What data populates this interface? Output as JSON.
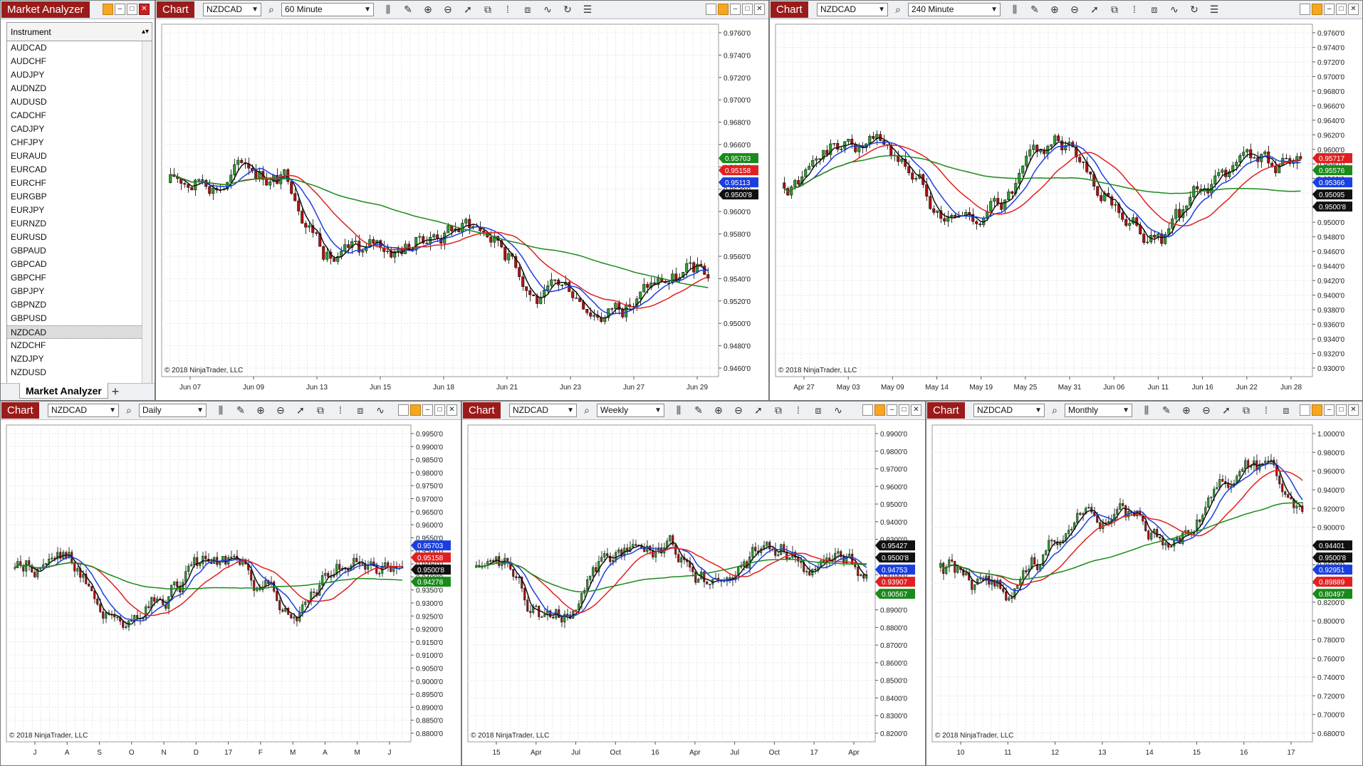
{
  "market_analyzer": {
    "title": "Market Analyzer",
    "column_header": "Instrument",
    "instruments": [
      "AUDCAD",
      "AUDCHF",
      "AUDJPY",
      "AUDNZD",
      "AUDUSD",
      "CADCHF",
      "CADJPY",
      "CHFJPY",
      "EURAUD",
      "EURCAD",
      "EURCHF",
      "EURGBP",
      "EURJPY",
      "EURNZD",
      "EURUSD",
      "GBPAUD",
      "GBPCAD",
      "GBPCHF",
      "GBPJPY",
      "GBPNZD",
      "GBPUSD",
      "NZDCAD",
      "NZDCHF",
      "NZDJPY",
      "NZDUSD"
    ],
    "selected": "NZDCAD",
    "tab_label": "Market Analyzer",
    "add_tab": "+"
  },
  "charts": [
    {
      "title": "Chart",
      "instrument": "NZDCAD",
      "interval": "60 Minute",
      "copyright": "© 2018 NinjaTrader, LLC",
      "price_labels": [
        "0.9760'0",
        "0.9740'0",
        "0.9720'0",
        "0.9700'0",
        "0.9680'0",
        "0.9660'0",
        "0.9640'0",
        "0.9620'0",
        "0.9600'0",
        "0.9580'0",
        "0.9560'0",
        "0.9540'0",
        "0.9520'0",
        "0.9500'0",
        "0.9480'0",
        "0.9460'0"
      ],
      "date_labels": [
        "Jun 07",
        "Jun 09",
        "Jun 13",
        "Jun 15",
        "Jun 18",
        "Jun 21",
        "Jun 23",
        "Jun 27",
        "Jun 29"
      ],
      "badges": [
        {
          "text": "0.95703",
          "color": "#1a8a1a"
        },
        {
          "text": "0.95158",
          "color": "#e02020"
        },
        {
          "text": "0.95113",
          "color": "#1a3fe0"
        },
        {
          "text": "0.9500'8",
          "color": "#111111"
        }
      ]
    },
    {
      "title": "Chart",
      "instrument": "NZDCAD",
      "interval": "240 Minute",
      "copyright": "© 2018 NinjaTrader, LLC",
      "price_labels": [
        "0.9760'0",
        "0.9740'0",
        "0.9720'0",
        "0.9700'0",
        "0.9680'0",
        "0.9660'0",
        "0.9640'0",
        "0.9620'0",
        "0.9600'0",
        "0.9580'0",
        "0.9560'0",
        "0.9540'0",
        "0.9520'0",
        "0.9500'0",
        "0.9480'0",
        "0.9460'0",
        "0.9440'0",
        "0.9420'0",
        "0.9400'0",
        "0.9380'0",
        "0.9360'0",
        "0.9340'0",
        "0.9320'0",
        "0.9300'0"
      ],
      "date_labels": [
        "Apr 27",
        "May 03",
        "May 09",
        "May 14",
        "May 19",
        "May 25",
        "May 31",
        "Jun 06",
        "Jun 11",
        "Jun 16",
        "Jun 22",
        "Jun 28"
      ],
      "badges": [
        {
          "text": "0.95717",
          "color": "#e02020"
        },
        {
          "text": "0.95576",
          "color": "#1a8a1a"
        },
        {
          "text": "0.95366",
          "color": "#1a3fe0"
        },
        {
          "text": "0.95095",
          "color": "#111111"
        },
        {
          "text": "0.9500'8",
          "color": "#111111"
        }
      ]
    },
    {
      "title": "Chart",
      "instrument": "NZDCAD",
      "interval": "Daily",
      "copyright": "© 2018 NinjaTrader, LLC",
      "price_labels": [
        "0.9950'0",
        "0.9900'0",
        "0.9850'0",
        "0.9800'0",
        "0.9750'0",
        "0.9700'0",
        "0.9650'0",
        "0.9600'0",
        "0.9550'0",
        "0.9500'0",
        "0.9450'0",
        "0.9400'0",
        "0.9350'0",
        "0.9300'0",
        "0.9250'0",
        "0.9200'0",
        "0.9150'0",
        "0.9100'0",
        "0.9050'0",
        "0.9000'0",
        "0.8950'0",
        "0.8900'0",
        "0.8850'0",
        "0.8800'0"
      ],
      "date_labels": [
        "J",
        "A",
        "S",
        "O",
        "N",
        "D",
        "17",
        "F",
        "M",
        "A",
        "M",
        "J"
      ],
      "badges": [
        {
          "text": "0.95703",
          "color": "#1a3fe0"
        },
        {
          "text": "0.95158",
          "color": "#e02020"
        },
        {
          "text": "0.9500'8",
          "color": "#111111"
        },
        {
          "text": "0.94278",
          "color": "#1a8a1a"
        }
      ]
    },
    {
      "title": "Chart",
      "instrument": "NZDCAD",
      "interval": "Weekly",
      "copyright": "© 2018 NinjaTrader, LLC",
      "price_labels": [
        "0.9900'0",
        "0.9800'0",
        "0.9700'0",
        "0.9600'0",
        "0.9500'0",
        "0.9400'0",
        "0.9300'0",
        "0.9200'0",
        "0.9100'0",
        "0.9000'0",
        "0.8900'0",
        "0.8800'0",
        "0.8700'0",
        "0.8600'0",
        "0.8500'0",
        "0.8400'0",
        "0.8300'0",
        "0.8200'0"
      ],
      "date_labels": [
        "15",
        "Apr",
        "Jul",
        "Oct",
        "16",
        "Apr",
        "Jul",
        "Oct",
        "17",
        "Apr"
      ],
      "badges": [
        {
          "text": "0.95427",
          "color": "#111111"
        },
        {
          "text": "0.9500'8",
          "color": "#111111"
        },
        {
          "text": "0.94753",
          "color": "#1a3fe0"
        },
        {
          "text": "0.93907",
          "color": "#e02020"
        },
        {
          "text": "0.90567",
          "color": "#1a8a1a"
        }
      ]
    },
    {
      "title": "Chart",
      "instrument": "NZDCAD",
      "interval": "Monthly",
      "copyright": "© 2018 NinjaTrader, LLC",
      "price_labels": [
        "1.0000'0",
        "0.9800'0",
        "0.9600'0",
        "0.9400'0",
        "0.9200'0",
        "0.9000'0",
        "0.8800'0",
        "0.8600'0",
        "0.8400'0",
        "0.8200'0",
        "0.8000'0",
        "0.7800'0",
        "0.7600'0",
        "0.7400'0",
        "0.7200'0",
        "0.7000'0",
        "0.6800'0"
      ],
      "date_labels": [
        "10",
        "11",
        "12",
        "13",
        "14",
        "15",
        "16",
        "17"
      ],
      "badges": [
        {
          "text": "0.94401",
          "color": "#111111"
        },
        {
          "text": "0.9500'8",
          "color": "#111111"
        },
        {
          "text": "0.92951",
          "color": "#1a3fe0"
        },
        {
          "text": "0.89889",
          "color": "#e02020"
        },
        {
          "text": "0.80497",
          "color": "#1a8a1a"
        }
      ]
    }
  ]
}
